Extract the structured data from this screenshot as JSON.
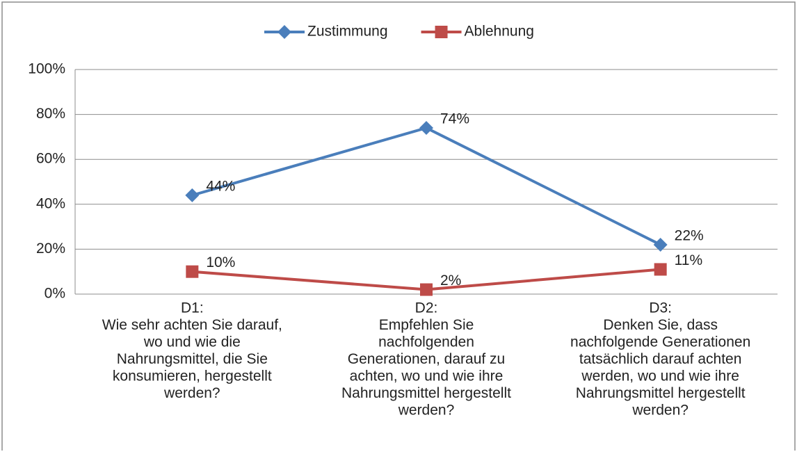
{
  "chart_data": {
    "type": "line",
    "categories": [
      [
        "D1:",
        "Wie sehr achten Sie darauf,",
        "wo und wie die",
        "Nahrungsmittel, die Sie",
        "konsumieren, hergestellt",
        "werden?"
      ],
      [
        "D2:",
        "Empfehlen Sie",
        "nachfolgenden",
        "Generationen, darauf zu",
        "achten, wo und wie ihre",
        "Nahrungsmittel hergestellt",
        "werden?"
      ],
      [
        "D3:",
        "Denken Sie, dass",
        "nachfolgende Generationen",
        "tatsächlich darauf achten",
        "werden, wo und wie ihre",
        "Nahrungsmittel hergestellt",
        "werden?"
      ]
    ],
    "series": [
      {
        "name": "Zustimmung",
        "color": "#4a7ebb",
        "marker": "diamond",
        "values": [
          44,
          74,
          22
        ],
        "value_labels": [
          "44%",
          "74%",
          "22%"
        ]
      },
      {
        "name": "Ablehnung",
        "color": "#be4b48",
        "marker": "square",
        "values": [
          10,
          2,
          11
        ],
        "value_labels": [
          "10%",
          "2%",
          "11%"
        ]
      }
    ],
    "ylim": [
      0,
      100
    ],
    "yticks": [
      {
        "value": 0,
        "label": "0%"
      },
      {
        "value": 20,
        "label": "20%"
      },
      {
        "value": 40,
        "label": "40%"
      },
      {
        "value": 60,
        "label": "60%"
      },
      {
        "value": 80,
        "label": "80%"
      },
      {
        "value": 100,
        "label": "100%"
      }
    ],
    "grid": true,
    "legend": "top"
  }
}
